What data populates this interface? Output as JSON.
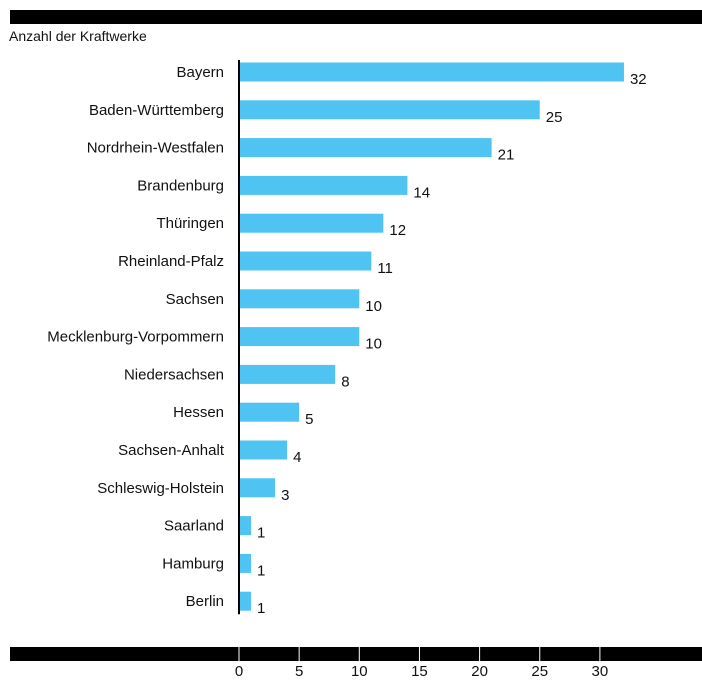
{
  "chart_data": {
    "type": "bar",
    "orientation": "horizontal",
    "ylabel": "Anzahl der Kraftwerke",
    "categories": [
      "Bayern",
      "Baden-Württemberg",
      "Nordrhein-Westfalen",
      "Brandenburg",
      "Thüringen",
      "Rheinland-Pfalz",
      "Sachsen",
      "Mecklenburg-Vorpommern",
      "Niedersachsen",
      "Hessen",
      "Sachsen-Anhalt",
      "Schleswig-Holstein",
      "Saarland",
      "Hamburg",
      "Berlin"
    ],
    "values": [
      32,
      25,
      21,
      14,
      12,
      11,
      10,
      10,
      8,
      5,
      4,
      3,
      1,
      1,
      1
    ],
    "value_labels": [
      "32",
      "25",
      "21",
      "14",
      "12",
      "11",
      "10",
      "10",
      "8",
      "5",
      "4",
      "3",
      "1",
      "1",
      "1"
    ],
    "xticks": [
      0,
      5,
      10,
      15,
      20,
      25,
      30
    ],
    "xtick_labels": [
      "0",
      "5",
      "10",
      "15",
      "20",
      "25",
      "30"
    ],
    "xlim": [
      0,
      32
    ],
    "grid": false,
    "bar_color": "#4fc3f2",
    "frame_color": "#000000"
  }
}
